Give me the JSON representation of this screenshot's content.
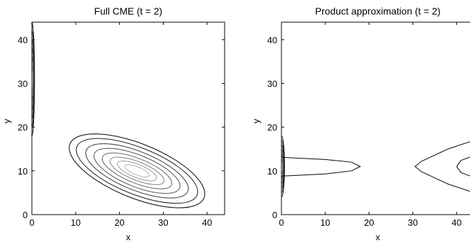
{
  "chart_data": [
    {
      "type": "contour",
      "title": "Full CME  (t = 2)",
      "xlabel": "x",
      "ylabel": "y",
      "xlim": [
        0,
        44
      ],
      "ylim": [
        0,
        44
      ],
      "xticks": [
        0,
        10,
        20,
        30,
        40
      ],
      "yticks": [
        0,
        10,
        20,
        30,
        40
      ],
      "grid": false,
      "features": [
        {
          "name": "x = 0 ridge",
          "center": [
            0,
            31
          ],
          "x_halfwidth": 0.6,
          "y_halfheight": 13,
          "levels": 7
        },
        {
          "name": "central peak",
          "center": [
            24,
            10
          ],
          "levels": [
            {
              "a": 16.5,
              "b": 6.2
            },
            {
              "a": 14.8,
              "b": 5.3
            },
            {
              "a": 12.5,
              "b": 4.4
            },
            {
              "a": 10.5,
              "b": 3.6
            },
            {
              "a": 8.5,
              "b": 2.8
            },
            {
              "a": 6.6,
              "b": 2.1
            },
            {
              "a": 4.8,
              "b": 1.5
            },
            {
              "a": 3.0,
              "b": 0.9
            }
          ],
          "rotation_deg": -22
        }
      ]
    },
    {
      "type": "contour",
      "title": "Product approximation (t = 2)",
      "xlabel": "x",
      "ylabel": "y",
      "xlim": [
        0,
        44
      ],
      "ylim": [
        0,
        44
      ],
      "xticks": [
        0,
        10,
        20,
        30,
        40
      ],
      "yticks": [
        0,
        10,
        20,
        30,
        40
      ],
      "grid": false,
      "features": [
        {
          "name": "x = 0 ridge",
          "center": [
            0,
            11
          ],
          "x_halfwidth": 0.7,
          "y_halfheight": 7,
          "levels": 7
        },
        {
          "name": "left lobe",
          "points": [
            [
              0,
              13.1
            ],
            [
              10,
              12.6
            ],
            [
              16,
              12
            ],
            [
              18,
              11
            ],
            [
              16,
              10
            ],
            [
              10,
              9.3
            ],
            [
              0,
              8.8
            ]
          ]
        },
        {
          "name": "right lobe",
          "points": [
            [
              44,
              17
            ],
            [
              38,
              15
            ],
            [
              32,
              12.2
            ],
            [
              30.5,
              11
            ],
            [
              32,
              9.8
            ],
            [
              38,
              7
            ],
            [
              44,
              5
            ]
          ]
        },
        {
          "name": "right lobe inner",
          "points": [
            [
              44,
              13.5
            ],
            [
              41,
              12.4
            ],
            [
              40,
              11
            ],
            [
              41,
              9.6
            ],
            [
              44,
              8.5
            ]
          ]
        }
      ]
    }
  ]
}
